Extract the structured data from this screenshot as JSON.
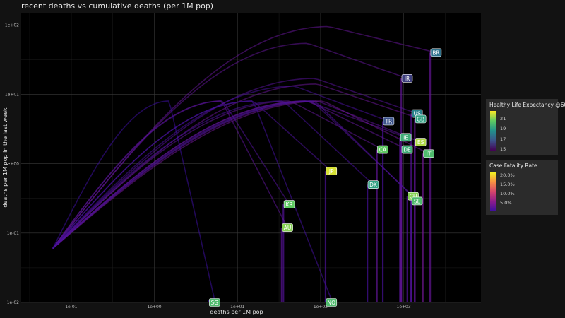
{
  "chart_data": {
    "type": "line",
    "title": "recent deaths vs cumulative deaths (per 1M pop)",
    "xlabel": "deaths per 1M pop",
    "ylabel": "deaths per 1M pop in the last week",
    "x_scale": "log10",
    "y_scale": "log10",
    "xlim": [
      0.025,
      8500
    ],
    "ylim": [
      0.01,
      150
    ],
    "x_ticks": [
      {
        "value": 0.1,
        "label": "1e-01"
      },
      {
        "value": 1,
        "label": "1e+00"
      },
      {
        "value": 10,
        "label": "1e+01"
      },
      {
        "value": 100,
        "label": "1e+02"
      },
      {
        "value": 1000,
        "label": "1e+03"
      }
    ],
    "y_ticks": [
      {
        "value": 0.01,
        "label": "1e-02"
      },
      {
        "value": 0.1,
        "label": "1e-01"
      },
      {
        "value": 1,
        "label": "1e+00"
      },
      {
        "value": 10,
        "label": "1e+01"
      },
      {
        "value": 100,
        "label": "1e+02"
      }
    ],
    "grid": true,
    "points": [
      {
        "label": "BR",
        "x": 2450,
        "y": 40,
        "hle": 17.5,
        "cfr": 0.028
      },
      {
        "label": "IR",
        "x": 1100,
        "y": 17,
        "hle": 16.0,
        "cfr": 0.025
      },
      {
        "label": "US",
        "x": 1450,
        "y": 5.3,
        "hle": 18.0,
        "cfr": 0.018
      },
      {
        "label": "GB",
        "x": 1600,
        "y": 4.4,
        "hle": 19.0,
        "cfr": 0.03
      },
      {
        "label": "TR",
        "x": 660,
        "y": 4.1,
        "hle": 16.5,
        "cfr": 0.009
      },
      {
        "label": "IE",
        "x": 1060,
        "y": 2.4,
        "hle": 19.5,
        "cfr": 0.02
      },
      {
        "label": "ES",
        "x": 1600,
        "y": 2.05,
        "hle": 21.5,
        "cfr": 0.022
      },
      {
        "label": "CA",
        "x": 560,
        "y": 1.6,
        "hle": 20.5,
        "cfr": 0.025
      },
      {
        "label": "DE",
        "x": 1100,
        "y": 1.6,
        "hle": 19.5,
        "cfr": 0.025
      },
      {
        "label": "IT",
        "x": 2000,
        "y": 1.4,
        "hle": 20.0,
        "cfr": 0.035
      },
      {
        "label": "JP",
        "x": 135,
        "y": 0.78,
        "hle": 22.0,
        "cfr": 0.012
      },
      {
        "label": "DK",
        "x": 430,
        "y": 0.5,
        "hle": 19.0,
        "cfr": 0.008
      },
      {
        "label": "CH",
        "x": 1300,
        "y": 0.34,
        "hle": 21.0,
        "cfr": 0.015
      },
      {
        "label": "SE",
        "x": 1450,
        "y": 0.29,
        "hle": 20.0,
        "cfr": 0.012
      },
      {
        "label": "KR",
        "x": 42,
        "y": 0.26,
        "hle": 20.5,
        "cfr": 0.015
      },
      {
        "label": "AU",
        "x": 40,
        "y": 0.12,
        "hle": 21.0,
        "cfr": 0.022
      },
      {
        "label": "SG",
        "x": 5.3,
        "y": 0.01,
        "hle": 20.0,
        "cfr": 0.001
      },
      {
        "label": "NO",
        "x": 135,
        "y": 0.01,
        "hle": 20.0,
        "cfr": 0.006
      }
    ]
  },
  "legend_hle": {
    "title": "Healthy Life Expectancy @60",
    "ticks": [
      "21",
      "19",
      "17",
      "15"
    ]
  },
  "legend_cfr": {
    "title": "Case Fatality Rate",
    "ticks": [
      "20.0%",
      "15.0%",
      "10.0%",
      "5.0%"
    ]
  }
}
